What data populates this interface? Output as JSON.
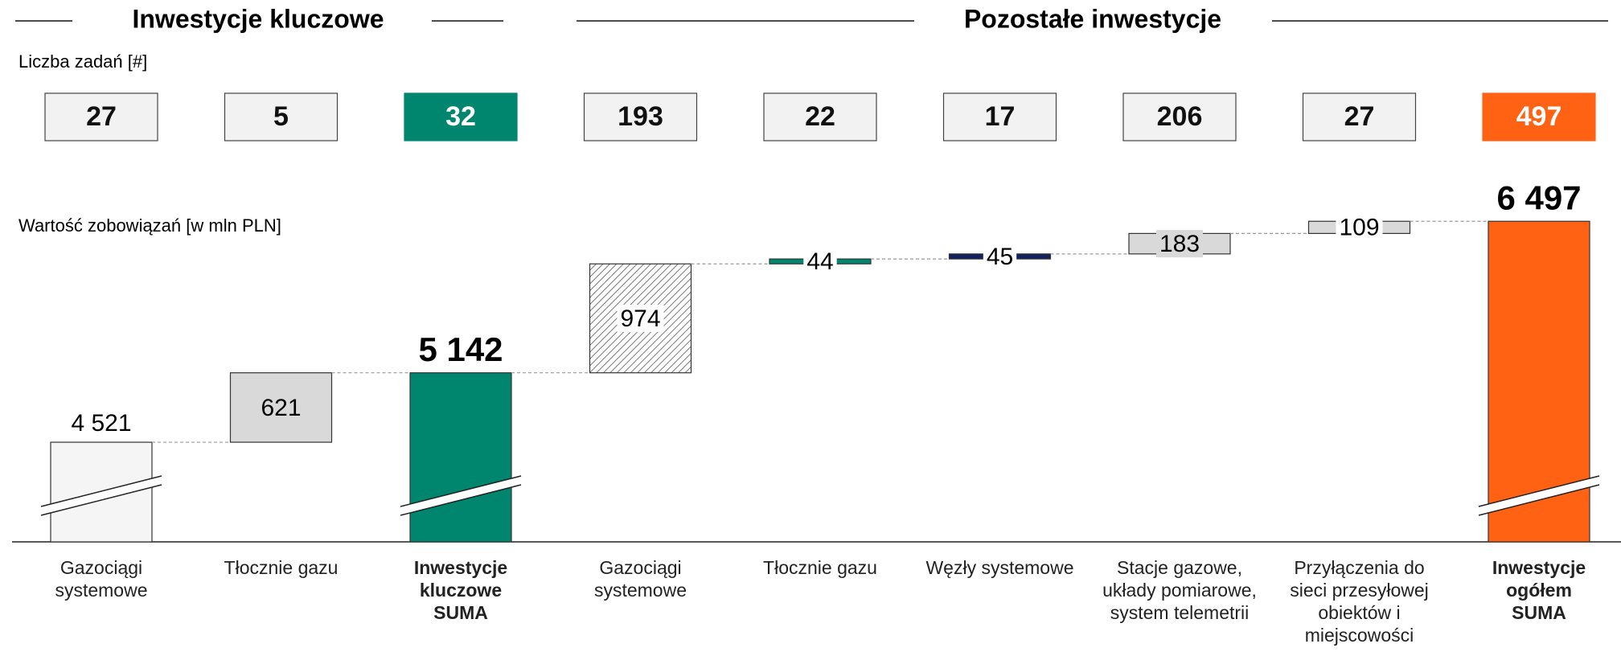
{
  "header": {
    "left": "Inwestycje kluczowe",
    "right": "Pozostałe inwestycje"
  },
  "counts": {
    "label": "Liczba zadań [#]",
    "values": [
      27,
      5,
      32,
      193,
      22,
      17,
      206,
      27,
      497
    ],
    "colors": [
      "#f2f2f2",
      "#f2f2f2",
      "#00856f",
      "#f2f2f2",
      "#f2f2f2",
      "#f2f2f2",
      "#f2f2f2",
      "#f2f2f2",
      "#ff6213"
    ]
  },
  "chart_data": {
    "type": "waterfall",
    "ylabel": "Wartość zobowiązań [w mln PLN]",
    "categories": [
      "Gazociągi systemowe",
      "Tłocznie gazu",
      "Inwestycje kluczowe SUMA",
      "Gazociągi systemowe",
      "Tłocznie gazu",
      "Węzły systemowe",
      "Stacje gazowe, układy pomiarowe, system telemetrii",
      "Przyłączenia do sieci przesyłowej obiektów i miejscowości",
      "Inwestycje ogółem SUMA"
    ],
    "values": [
      4521,
      621,
      5142,
      974,
      44,
      45,
      183,
      109,
      6497
    ],
    "value_labels": [
      "4 521",
      "621",
      "5 142",
      "974",
      "44",
      "45",
      "183",
      "109",
      "6 497"
    ],
    "totals": [
      false,
      false,
      true,
      false,
      false,
      false,
      false,
      false,
      true
    ],
    "colors": [
      "#f5f5f5",
      "#d9d9d9",
      "#00856f",
      "hatch",
      "#00856f",
      "#13215e",
      "#d9d9d9",
      "#d9d9d9",
      "#ff6213"
    ],
    "label_positions": [
      "above",
      "inside",
      "above",
      "inside",
      "inside",
      "inside",
      "inside",
      "inside",
      "above"
    ],
    "ylim": [
      3630,
      6700
    ],
    "axis_break": true
  }
}
